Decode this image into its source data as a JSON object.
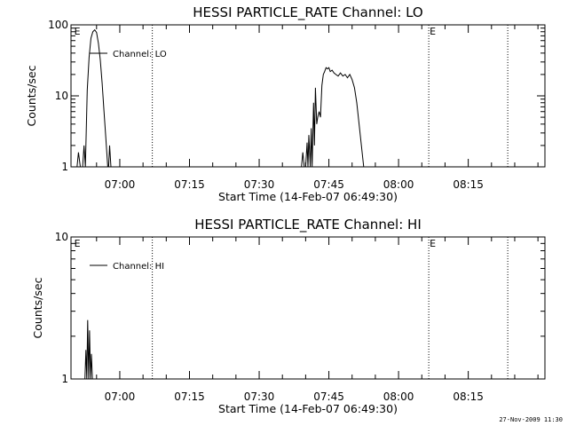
{
  "footer": {
    "timestamp": "27-Nov-2009 11:30"
  },
  "chart_data": [
    {
      "type": "line",
      "title": "HESSI PARTICLE_RATE Channel: LO",
      "xlabel": "Start Time (14-Feb-07 06:49:30)",
      "ylabel": "Counts/sec",
      "y_scale": "log",
      "ylim": [
        1,
        100
      ],
      "y_ticks": [
        {
          "value": 1,
          "label": "1"
        },
        {
          "value": 10,
          "label": "10"
        },
        {
          "value": 100,
          "label": "100"
        }
      ],
      "xlim_minutes": [
        0,
        102
      ],
      "x_ticks": [
        {
          "value": 10.5,
          "label": "07:00"
        },
        {
          "value": 25.5,
          "label": "07:15"
        },
        {
          "value": 40.5,
          "label": "07:30"
        },
        {
          "value": 55.5,
          "label": "07:45"
        },
        {
          "value": 70.5,
          "label": "08:00"
        },
        {
          "value": 85.5,
          "label": "08:15"
        }
      ],
      "grid": false,
      "legend_position": "top-left",
      "vertical_markers": [
        {
          "minute": 0.5,
          "style": "none",
          "label": "E"
        },
        {
          "minute": 17.5,
          "style": "dotted",
          "label": ""
        },
        {
          "minute": 77,
          "style": "dotted",
          "label": "E"
        },
        {
          "minute": 94,
          "style": "dotted",
          "label": ""
        }
      ],
      "series": [
        {
          "name": "Channel: LO",
          "points": [
            [
              1.3,
              1
            ],
            [
              1.6,
              1.6
            ],
            [
              2.0,
              1
            ],
            [
              2.5,
              1
            ],
            [
              2.8,
              2
            ],
            [
              3.1,
              1
            ],
            [
              3.5,
              12
            ],
            [
              3.9,
              35
            ],
            [
              4.3,
              65
            ],
            [
              4.7,
              80
            ],
            [
              5.1,
              85
            ],
            [
              5.5,
              78
            ],
            [
              5.9,
              55
            ],
            [
              6.3,
              32
            ],
            [
              6.7,
              15
            ],
            [
              7.1,
              6
            ],
            [
              7.5,
              2.5
            ],
            [
              7.9,
              1
            ],
            [
              8.1,
              1
            ],
            [
              8.3,
              2
            ],
            [
              8.6,
              1
            ],
            [
              49.6,
              1
            ],
            [
              49.9,
              1.6
            ],
            [
              50.2,
              1
            ],
            [
              50.5,
              1
            ],
            [
              50.8,
              2.2
            ],
            [
              51.0,
              1
            ],
            [
              51.2,
              2.8
            ],
            [
              51.5,
              1
            ],
            [
              51.7,
              3.5
            ],
            [
              51.9,
              1
            ],
            [
              52.2,
              8
            ],
            [
              52.4,
              2
            ],
            [
              52.6,
              13
            ],
            [
              52.9,
              4
            ],
            [
              53.1,
              5
            ],
            [
              53.4,
              6
            ],
            [
              53.7,
              5
            ],
            [
              54.0,
              14
            ],
            [
              54.3,
              20
            ],
            [
              54.6,
              22
            ],
            [
              54.9,
              25
            ],
            [
              55.2,
              24
            ],
            [
              55.5,
              25
            ],
            [
              55.8,
              22
            ],
            [
              56.2,
              23
            ],
            [
              56.6,
              21
            ],
            [
              57.0,
              20
            ],
            [
              57.5,
              19
            ],
            [
              58.0,
              21
            ],
            [
              58.5,
              19
            ],
            [
              59.0,
              20
            ],
            [
              59.5,
              18
            ],
            [
              60.0,
              20
            ],
            [
              60.5,
              17
            ],
            [
              61.0,
              13
            ],
            [
              61.5,
              8
            ],
            [
              62.0,
              4
            ],
            [
              62.5,
              2
            ],
            [
              63.0,
              1
            ]
          ]
        }
      ]
    },
    {
      "type": "line",
      "title": "HESSI PARTICLE_RATE Channel: HI",
      "xlabel": "Start Time (14-Feb-07 06:49:30)",
      "ylabel": "Counts/sec",
      "y_scale": "log",
      "ylim": [
        1,
        10
      ],
      "y_ticks": [
        {
          "value": 1,
          "label": "1"
        },
        {
          "value": 10,
          "label": "10"
        }
      ],
      "xlim_minutes": [
        0,
        102
      ],
      "x_ticks": [
        {
          "value": 10.5,
          "label": "07:00"
        },
        {
          "value": 25.5,
          "label": "07:15"
        },
        {
          "value": 40.5,
          "label": "07:30"
        },
        {
          "value": 55.5,
          "label": "07:45"
        },
        {
          "value": 70.5,
          "label": "08:00"
        },
        {
          "value": 85.5,
          "label": "08:15"
        }
      ],
      "grid": false,
      "legend_position": "top-left",
      "vertical_markers": [
        {
          "minute": 0.5,
          "style": "none",
          "label": "E"
        },
        {
          "minute": 17.5,
          "style": "dotted",
          "label": ""
        },
        {
          "minute": 77,
          "style": "dotted",
          "label": "E"
        },
        {
          "minute": 94,
          "style": "dotted",
          "label": ""
        }
      ],
      "series": [
        {
          "name": "Channel: HI",
          "points": [
            [
              3.0,
              1
            ],
            [
              3.2,
              1.6
            ],
            [
              3.4,
              1
            ],
            [
              3.6,
              2.6
            ],
            [
              3.8,
              1
            ],
            [
              4.0,
              2.2
            ],
            [
              4.2,
              1
            ],
            [
              4.4,
              1.5
            ],
            [
              4.6,
              1
            ]
          ]
        }
      ]
    }
  ]
}
